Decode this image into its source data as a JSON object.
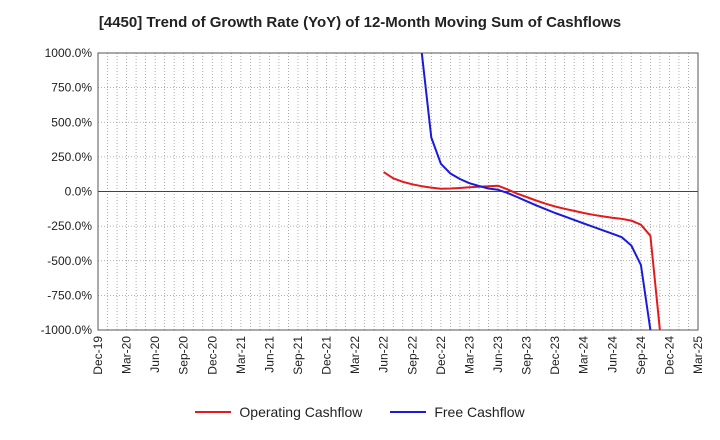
{
  "chart_data": {
    "type": "line",
    "title": "[4450]  Trend of Growth Rate (YoY) of 12-Month Moving Sum of Cashflows",
    "xlabel": "",
    "ylabel": "",
    "ylim": [
      -1000,
      1000
    ],
    "yticks": [
      1000,
      750,
      500,
      250,
      0,
      -250,
      -500,
      -750,
      -1000
    ],
    "ytick_labels": [
      "1000.0%",
      "750.0%",
      "500.0%",
      "250.0%",
      "0.0%",
      "-250.0%",
      "-500.0%",
      "-750.0%",
      "-1000.0%"
    ],
    "xlim": [
      "2019-12",
      "2025-03"
    ],
    "xtick_labels": [
      "Dec-19",
      "Mar-20",
      "Jun-20",
      "Sep-20",
      "Dec-20",
      "Mar-21",
      "Jun-21",
      "Sep-21",
      "Dec-21",
      "Mar-22",
      "Jun-22",
      "Sep-22",
      "Dec-22",
      "Mar-23",
      "Jun-23",
      "Sep-23",
      "Dec-23",
      "Mar-24",
      "Jun-24",
      "Sep-24",
      "Dec-24",
      "Mar-25"
    ],
    "grid": true,
    "legend_position": "bottom",
    "series": [
      {
        "name": "Operating Cashflow",
        "color": "#e41a1c",
        "points": [
          [
            "2022-06",
            140
          ],
          [
            "2022-07",
            95
          ],
          [
            "2022-08",
            70
          ],
          [
            "2022-09",
            52
          ],
          [
            "2022-10",
            38
          ],
          [
            "2022-11",
            28
          ],
          [
            "2022-12",
            20
          ],
          [
            "2023-01",
            22
          ],
          [
            "2023-02",
            25
          ],
          [
            "2023-03",
            30
          ],
          [
            "2023-04",
            35
          ],
          [
            "2023-05",
            38
          ],
          [
            "2023-06",
            42
          ],
          [
            "2023-07",
            15
          ],
          [
            "2023-08",
            -15
          ],
          [
            "2023-09",
            -40
          ],
          [
            "2023-10",
            -65
          ],
          [
            "2023-11",
            -88
          ],
          [
            "2023-12",
            -108
          ],
          [
            "2024-01",
            -125
          ],
          [
            "2024-02",
            -140
          ],
          [
            "2024-03",
            -155
          ],
          [
            "2024-04",
            -168
          ],
          [
            "2024-05",
            -180
          ],
          [
            "2024-06",
            -190
          ],
          [
            "2024-07",
            -198
          ],
          [
            "2024-08",
            -210
          ],
          [
            "2024-09",
            -240
          ],
          [
            "2024-10",
            -320
          ],
          [
            "2024-11",
            -1000
          ]
        ]
      },
      {
        "name": "Free Cashflow",
        "color": "#1a1adc",
        "points": [
          [
            "2022-10",
            1000
          ],
          [
            "2022-11",
            390
          ],
          [
            "2022-12",
            200
          ],
          [
            "2023-01",
            130
          ],
          [
            "2023-02",
            90
          ],
          [
            "2023-03",
            60
          ],
          [
            "2023-04",
            40
          ],
          [
            "2023-05",
            22
          ],
          [
            "2023-06",
            12
          ],
          [
            "2023-07",
            -10
          ],
          [
            "2023-08",
            -40
          ],
          [
            "2023-09",
            -70
          ],
          [
            "2023-10",
            -100
          ],
          [
            "2023-11",
            -128
          ],
          [
            "2023-12",
            -155
          ],
          [
            "2024-01",
            -180
          ],
          [
            "2024-02",
            -205
          ],
          [
            "2024-03",
            -230
          ],
          [
            "2024-04",
            -255
          ],
          [
            "2024-05",
            -280
          ],
          [
            "2024-06",
            -305
          ],
          [
            "2024-07",
            -330
          ],
          [
            "2024-08",
            -390
          ],
          [
            "2024-09",
            -530
          ],
          [
            "2024-10",
            -1000
          ]
        ]
      }
    ]
  }
}
